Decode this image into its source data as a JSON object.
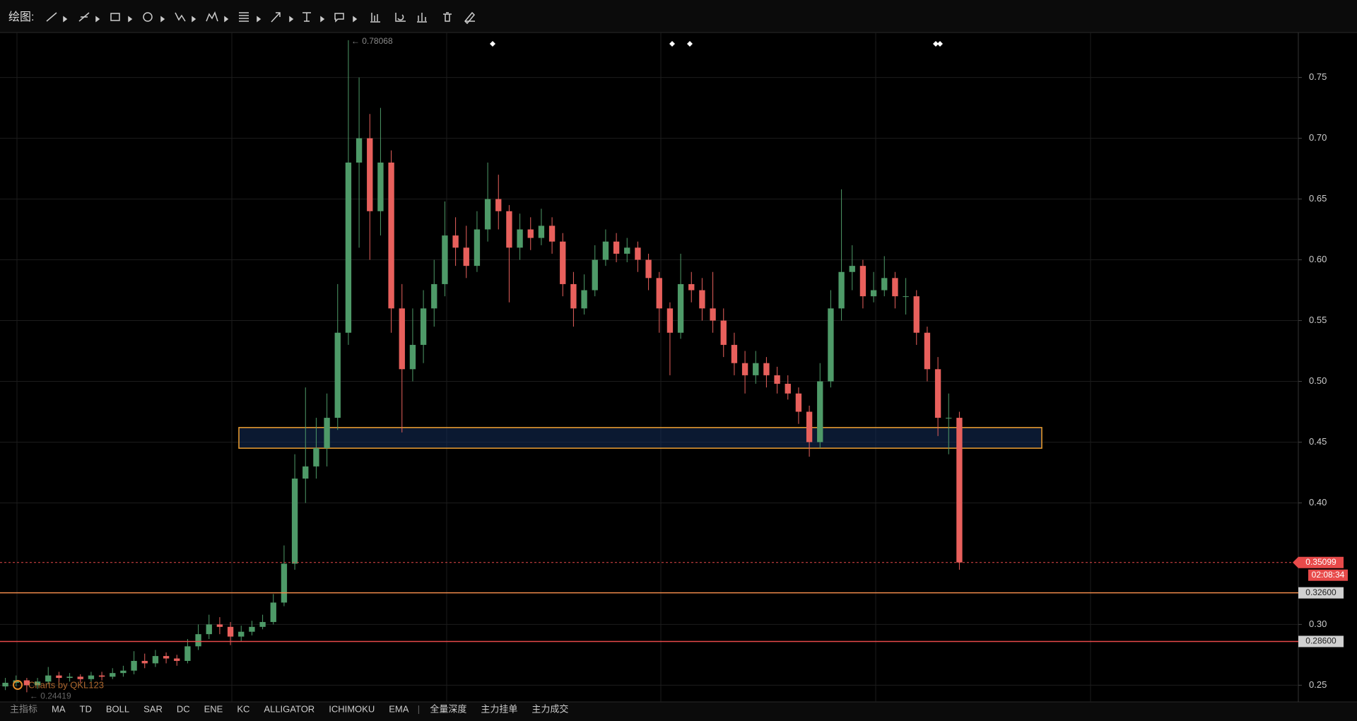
{
  "toolbar": {
    "label": "绘图:"
  },
  "chart_data": {
    "type": "candlestick",
    "up_color": "#4e9a68",
    "down_color": "#e8605c",
    "open": [
      0.249,
      0.252,
      0.254,
      0.25,
      0.253,
      0.258,
      0.256,
      0.257,
      0.255,
      0.258,
      0.257,
      0.26,
      0.262,
      0.27,
      0.268,
      0.274,
      0.272,
      0.27,
      0.282,
      0.292,
      0.3,
      0.298,
      0.29,
      0.294,
      0.298,
      0.302,
      0.318,
      0.35,
      0.42,
      0.43,
      0.445,
      0.47,
      0.54,
      0.68,
      0.7,
      0.64,
      0.68,
      0.56,
      0.51,
      0.53,
      0.56,
      0.58,
      0.62,
      0.61,
      0.595,
      0.625,
      0.65,
      0.64,
      0.61,
      0.625,
      0.618,
      0.628,
      0.615,
      0.58,
      0.56,
      0.575,
      0.6,
      0.615,
      0.605,
      0.61,
      0.6,
      0.585,
      0.56,
      0.54,
      0.58,
      0.575,
      0.56,
      0.55,
      0.53,
      0.515,
      0.505,
      0.515,
      0.505,
      0.498,
      0.49,
      0.475,
      0.45,
      0.5,
      0.56,
      0.59,
      0.595,
      0.57,
      0.575,
      0.585,
      0.57,
      0.57,
      0.54,
      0.51,
      0.47,
      0.47
    ],
    "high": [
      0.256,
      0.258,
      0.256,
      0.256,
      0.265,
      0.261,
      0.26,
      0.259,
      0.261,
      0.261,
      0.264,
      0.266,
      0.278,
      0.276,
      0.279,
      0.277,
      0.275,
      0.288,
      0.3,
      0.308,
      0.306,
      0.302,
      0.299,
      0.303,
      0.308,
      0.325,
      0.365,
      0.44,
      0.495,
      0.47,
      0.49,
      0.58,
      0.78068,
      0.75,
      0.72,
      0.725,
      0.69,
      0.58,
      0.56,
      0.575,
      0.6,
      0.648,
      0.635,
      0.628,
      0.64,
      0.68,
      0.67,
      0.645,
      0.638,
      0.635,
      0.642,
      0.635,
      0.622,
      0.59,
      0.588,
      0.612,
      0.625,
      0.622,
      0.618,
      0.615,
      0.605,
      0.59,
      0.565,
      0.605,
      0.59,
      0.585,
      0.59,
      0.56,
      0.54,
      0.525,
      0.525,
      0.52,
      0.512,
      0.505,
      0.495,
      0.48,
      0.515,
      0.575,
      0.658,
      0.612,
      0.6,
      0.59,
      0.603,
      0.59,
      0.585,
      0.575,
      0.545,
      0.52,
      0.49,
      0.475
    ],
    "low": [
      0.246,
      0.249,
      0.24419,
      0.247,
      0.251,
      0.253,
      0.253,
      0.252,
      0.253,
      0.254,
      0.255,
      0.257,
      0.259,
      0.264,
      0.265,
      0.268,
      0.266,
      0.268,
      0.279,
      0.288,
      0.292,
      0.283,
      0.286,
      0.291,
      0.296,
      0.3,
      0.315,
      0.345,
      0.4,
      0.42,
      0.43,
      0.46,
      0.53,
      0.61,
      0.6,
      0.62,
      0.54,
      0.458,
      0.5,
      0.515,
      0.545,
      0.57,
      0.595,
      0.585,
      0.59,
      0.615,
      0.625,
      0.565,
      0.6,
      0.608,
      0.612,
      0.605,
      0.57,
      0.545,
      0.555,
      0.57,
      0.595,
      0.598,
      0.598,
      0.59,
      0.575,
      0.54,
      0.505,
      0.535,
      0.565,
      0.55,
      0.54,
      0.52,
      0.505,
      0.49,
      0.498,
      0.495,
      0.49,
      0.485,
      0.465,
      0.438,
      0.445,
      0.495,
      0.55,
      0.575,
      0.56,
      0.565,
      0.57,
      0.56,
      0.555,
      0.53,
      0.5,
      0.455,
      0.44,
      0.345
    ],
    "close": [
      0.252,
      0.254,
      0.25,
      0.253,
      0.258,
      0.256,
      0.257,
      0.255,
      0.258,
      0.257,
      0.26,
      0.262,
      0.27,
      0.268,
      0.274,
      0.272,
      0.27,
      0.282,
      0.292,
      0.3,
      0.298,
      0.29,
      0.294,
      0.298,
      0.302,
      0.318,
      0.35,
      0.42,
      0.43,
      0.445,
      0.47,
      0.54,
      0.68,
      0.7,
      0.64,
      0.68,
      0.56,
      0.51,
      0.53,
      0.56,
      0.58,
      0.62,
      0.61,
      0.595,
      0.625,
      0.65,
      0.64,
      0.61,
      0.625,
      0.618,
      0.628,
      0.615,
      0.58,
      0.56,
      0.575,
      0.6,
      0.615,
      0.605,
      0.61,
      0.6,
      0.585,
      0.56,
      0.54,
      0.58,
      0.575,
      0.56,
      0.55,
      0.53,
      0.515,
      0.505,
      0.515,
      0.505,
      0.498,
      0.49,
      0.475,
      0.45,
      0.5,
      0.56,
      0.59,
      0.595,
      0.57,
      0.575,
      0.585,
      0.57,
      0.57,
      0.54,
      0.51,
      0.47,
      0.47,
      0.351
    ],
    "ylim": [
      0.238,
      0.787
    ],
    "yticks": [
      0.25,
      {
        "value": 0.3,
        "label": "0.30"
      },
      {
        "value": 0.4,
        "label": "0.40"
      },
      0.45,
      {
        "value": 0.5,
        "label": "0.50"
      },
      0.55,
      {
        "value": 0.6,
        "label": "0.60"
      },
      0.65,
      {
        "value": 0.7,
        "label": "0.70"
      },
      0.75
    ],
    "grid": true,
    "high_marker": {
      "value": 0.78068,
      "label": "← 0.78068"
    },
    "low_marker": {
      "value": 0.24419,
      "label": "← 0.24419"
    },
    "zone": {
      "low": 0.445,
      "high": 0.462,
      "color": "#f0a030"
    },
    "price_lines": [
      {
        "value": 0.326,
        "label": "0.32600",
        "color": "#f08a4b"
      },
      {
        "value": 0.286,
        "label": "0.28600",
        "color": "#e84a4a"
      }
    ],
    "current_price": {
      "value": 0.35099,
      "label": "0.35099",
      "countdown": "02:08:34",
      "color": "#e84a4a"
    },
    "watermark": "Charts by QKL123"
  },
  "tabs": {
    "indicators": [
      "主指标",
      "MA",
      "TD",
      "BOLL",
      "SAR",
      "DC",
      "ENE",
      "KC",
      "ALLIGATOR",
      "ICHIMOKU",
      "EMA"
    ],
    "depth": [
      "全量深度",
      "主力挂单",
      "主力成交"
    ]
  }
}
